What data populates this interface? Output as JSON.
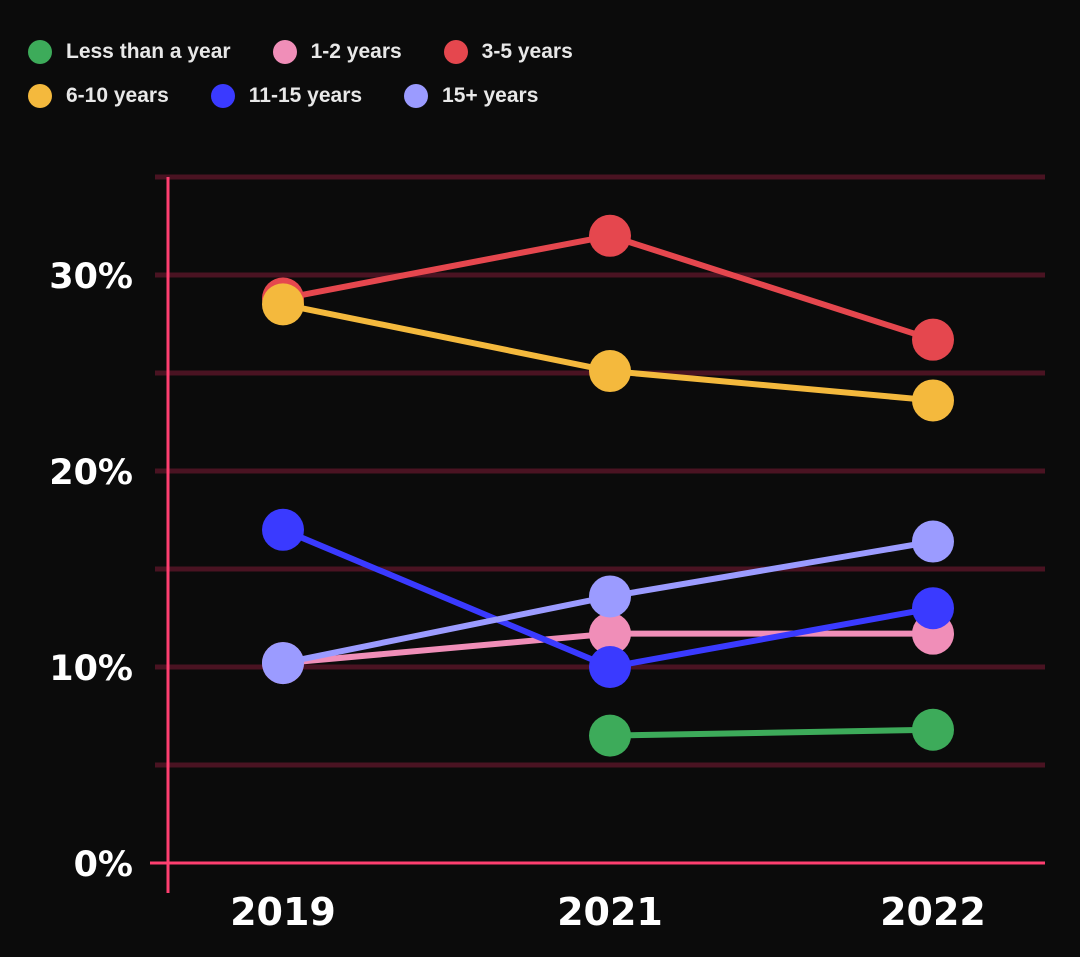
{
  "chart_data": {
    "type": "line",
    "title": "",
    "xlabel": "",
    "ylabel": "",
    "categories": [
      "2019",
      "2021",
      "2022"
    ],
    "y_ticks": [
      "0%",
      "10%",
      "20%",
      "30%"
    ],
    "ylim": [
      0,
      35
    ],
    "grid": true,
    "legend_position": "top-left",
    "series": [
      {
        "name": "Less than a year",
        "color": "#3dab5a",
        "values": [
          null,
          6.5,
          6.8
        ]
      },
      {
        "name": "1-2 years",
        "color": "#f08eb8",
        "values": [
          10.2,
          11.7,
          11.7
        ]
      },
      {
        "name": "3-5 years",
        "color": "#e5474e",
        "values": [
          28.8,
          32.0,
          26.7
        ]
      },
      {
        "name": "6-10 years",
        "color": "#f4b93d",
        "values": [
          28.5,
          25.1,
          23.6
        ]
      },
      {
        "name": "11-15 years",
        "color": "#3a3aff",
        "values": [
          17.0,
          10.0,
          13.0
        ]
      },
      {
        "name": "15+ years",
        "color": "#9b9bff",
        "values": [
          10.2,
          13.6,
          16.4
        ]
      }
    ]
  }
}
